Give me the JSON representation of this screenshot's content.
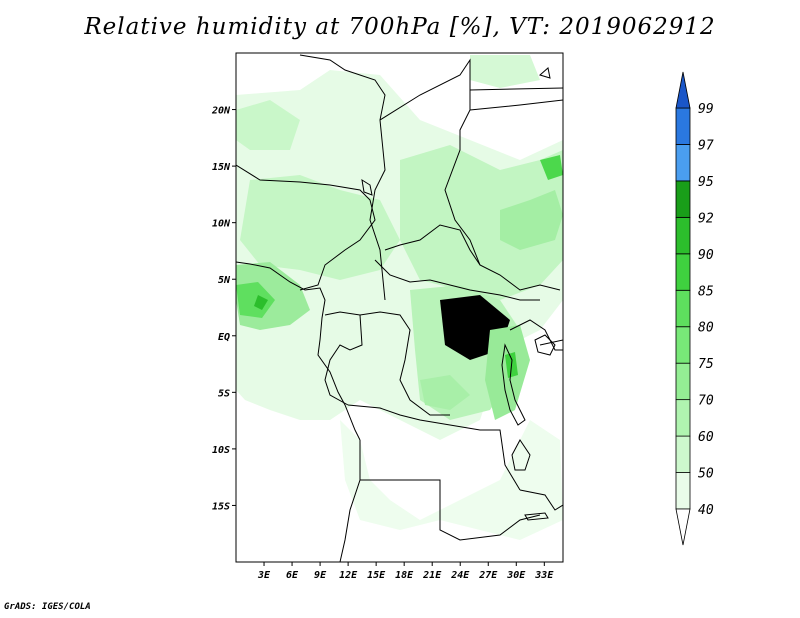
{
  "title": "Relative humidity at 700hPa [%], VT: 2019062912",
  "credit": "GrADS: IGES/COLA",
  "map": {
    "lon_range": [
      0,
      35
    ],
    "lat_range": [
      -20,
      25
    ],
    "lat_ticks": [
      {
        "value": 20,
        "label": "20N"
      },
      {
        "value": 15,
        "label": "15N"
      },
      {
        "value": 10,
        "label": "10N"
      },
      {
        "value": 5,
        "label": "5N"
      },
      {
        "value": 0,
        "label": "EQ"
      },
      {
        "value": -5,
        "label": "5S"
      },
      {
        "value": -10,
        "label": "10S"
      },
      {
        "value": -15,
        "label": "15S"
      }
    ],
    "lon_ticks": [
      {
        "value": 3,
        "label": "3E"
      },
      {
        "value": 6,
        "label": "6E"
      },
      {
        "value": 9,
        "label": "9E"
      },
      {
        "value": 12,
        "label": "12E"
      },
      {
        "value": 15,
        "label": "15E"
      },
      {
        "value": 18,
        "label": "18E"
      },
      {
        "value": 21,
        "label": "21E"
      },
      {
        "value": 24,
        "label": "24E"
      },
      {
        "value": 27,
        "label": "27E"
      },
      {
        "value": 30,
        "label": "30E"
      },
      {
        "value": 33,
        "label": "33E"
      }
    ]
  },
  "colorbar": {
    "levels": [
      "40",
      "50",
      "60",
      "70",
      "75",
      "80",
      "85",
      "90",
      "92",
      "95",
      "97",
      "99"
    ],
    "colors": [
      "#ffffff",
      "#e9fce9",
      "#cdf8cd",
      "#b0f4b0",
      "#94ee94",
      "#78e878",
      "#5edf5e",
      "#3fd13f",
      "#2cbe2c",
      "#199e19",
      "#4a9ef0",
      "#2a78e0",
      "#1a56c8"
    ]
  },
  "colors": {
    "land_base": "#ffffff",
    "boundaries": "#000000"
  }
}
